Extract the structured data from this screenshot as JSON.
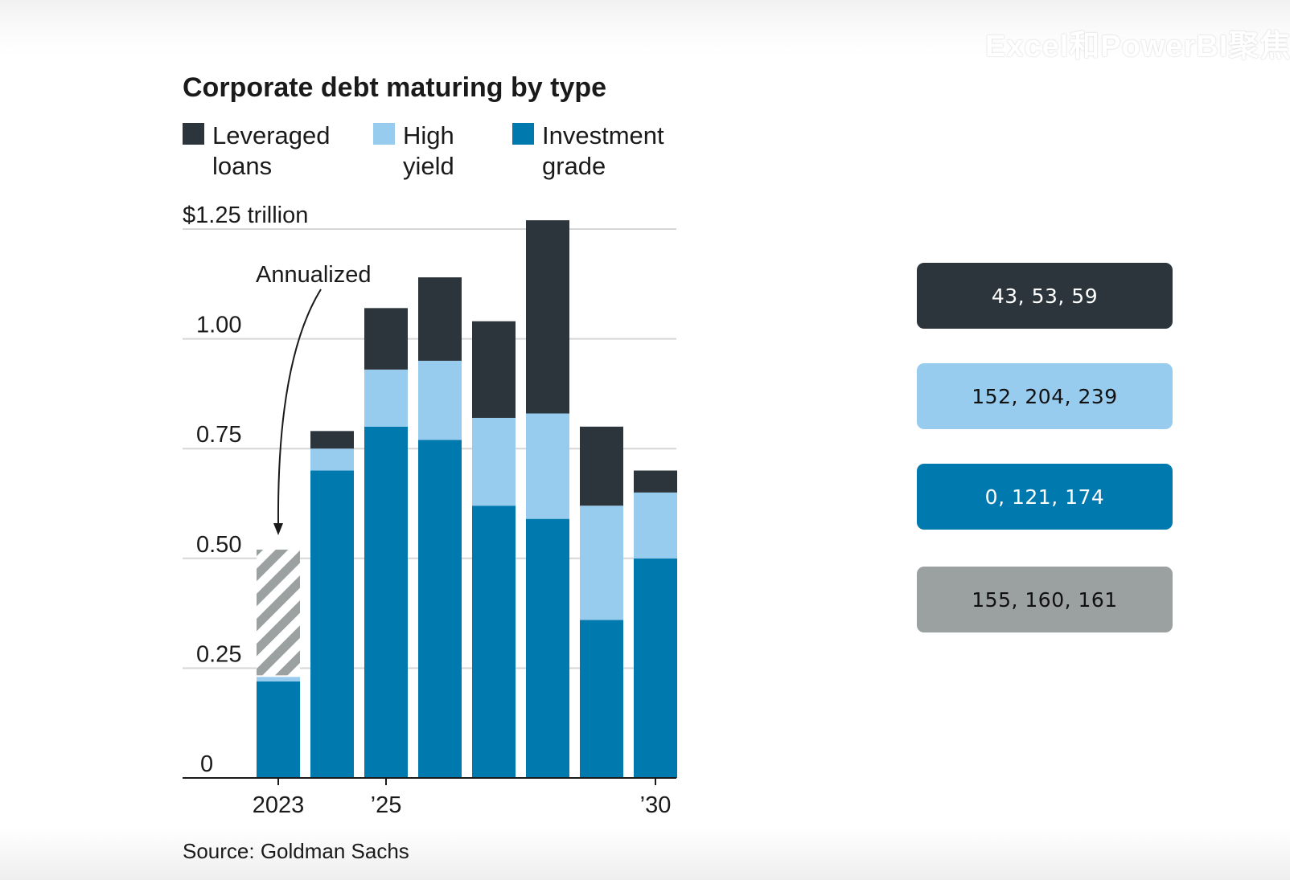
{
  "watermark": "Excel和PowerBI聚焦",
  "chart_data": {
    "type": "bar",
    "stacked": true,
    "title": "Corporate debt maturing by type",
    "unit_label": "$1.25 trillion",
    "categories": [
      "2023",
      "2024",
      "2025",
      "2026",
      "2027",
      "2028",
      "2029",
      "2030"
    ],
    "x_tick_labels": [
      "2023",
      "",
      "’25",
      "",
      "",
      "",
      "",
      "’30"
    ],
    "y_ticks": [
      0,
      0.25,
      0.5,
      0.75,
      1.0,
      1.25
    ],
    "y_tick_labels": [
      "0",
      "0.25",
      "0.50",
      "0.75",
      "1.00",
      "$1.25 trillion"
    ],
    "ylim": [
      0,
      1.25
    ],
    "series": [
      {
        "name": "Investment grade",
        "color": "#0079AE",
        "values": [
          0.22,
          0.7,
          0.8,
          0.77,
          0.62,
          0.59,
          0.36,
          0.5
        ]
      },
      {
        "name": "High yield",
        "color": "#98CCEF",
        "values": [
          0.01,
          0.05,
          0.13,
          0.18,
          0.2,
          0.24,
          0.26,
          0.15
        ]
      },
      {
        "name": "Leveraged loans",
        "color": "#2B353B",
        "values": [
          0.0,
          0.04,
          0.14,
          0.19,
          0.22,
          0.44,
          0.18,
          0.05
        ]
      }
    ],
    "annualized_extension": {
      "category": "2023",
      "to_value": 0.52,
      "color": "#9BA0A1"
    },
    "legend": [
      {
        "name": "Leveraged loans",
        "lines": [
          "Leveraged",
          "loans"
        ],
        "color": "#2B353B"
      },
      {
        "name": "High yield",
        "lines": [
          "High",
          "yield"
        ],
        "color": "#98CCEF"
      },
      {
        "name": "Investment grade",
        "lines": [
          "Investment",
          "grade"
        ],
        "color": "#0079AE"
      }
    ],
    "annotation": "Annualized",
    "source": "Source: Goldman Sachs"
  },
  "swatches": [
    {
      "label": "43, 53, 59",
      "color": "#2B353B",
      "text_color": "#ffffff"
    },
    {
      "label": "152, 204, 239",
      "color": "#98CCEF",
      "text_color": "#111111"
    },
    {
      "label": "0, 121, 174",
      "color": "#0079AE",
      "text_color": "#ffffff"
    },
    {
      "label": "155, 160, 161",
      "color": "#9BA0A1",
      "text_color": "#111111"
    }
  ]
}
